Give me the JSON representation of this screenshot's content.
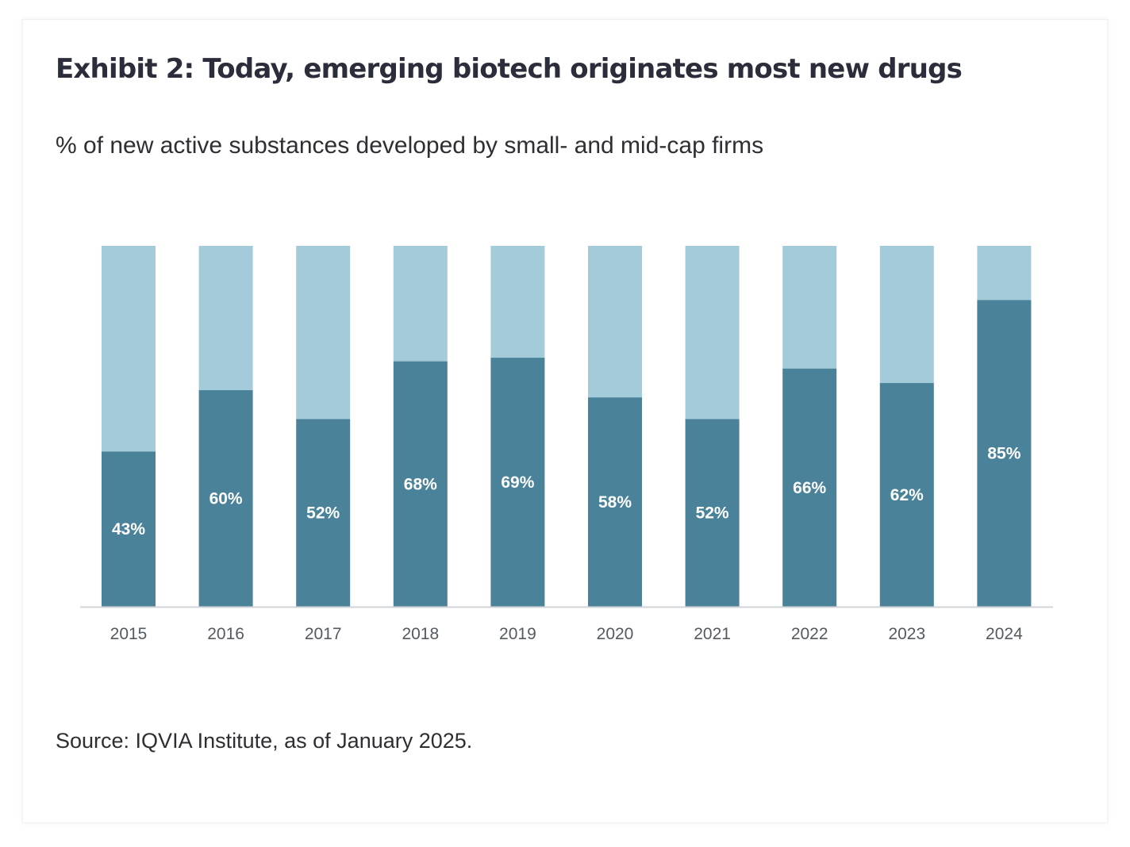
{
  "colors": {
    "primary_bar": "#4a8399",
    "remainder_bar": "#a3cbd9",
    "axis_line": "#d0d4d8",
    "title_text": "#2b2d3a"
  },
  "chart_data": {
    "type": "bar",
    "stacked": true,
    "title": "Exhibit 2: Today, emerging biotech originates most new drugs",
    "subtitle": "% of new active substances developed by small- and mid-cap firms",
    "categories": [
      "2015",
      "2016",
      "2017",
      "2018",
      "2019",
      "2020",
      "2021",
      "2022",
      "2023",
      "2024"
    ],
    "series": [
      {
        "values": [
          43,
          60,
          52,
          68,
          69,
          58,
          52,
          66,
          62,
          85
        ]
      },
      {
        "values": [
          57,
          40,
          48,
          32,
          31,
          42,
          48,
          34,
          38,
          15
        ]
      }
    ],
    "data_labels": [
      "43%",
      "60%",
      "52%",
      "68%",
      "69%",
      "58%",
      "52%",
      "66%",
      "62%",
      "85%"
    ],
    "ylim": [
      0,
      100
    ],
    "xlabel": "",
    "ylabel": "",
    "grid": false,
    "legend": "none"
  },
  "source": "Source: IQVIA Institute, as of January 2025."
}
